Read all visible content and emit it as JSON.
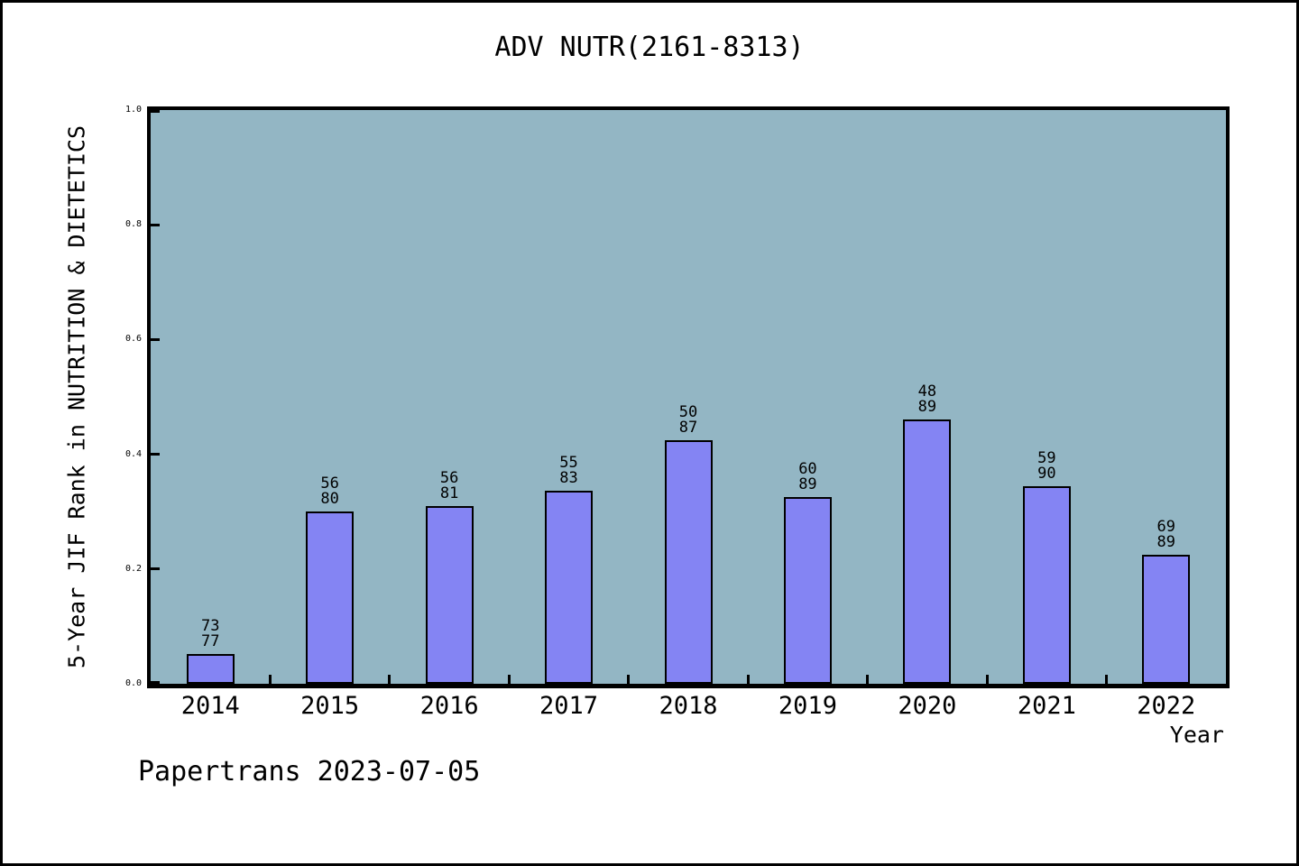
{
  "chart_data": {
    "type": "bar",
    "title": "ADV NUTR(2161-8313)",
    "xlabel": "Year",
    "ylabel": "5-Year JIF Rank in NUTRITION & DIETETICS",
    "footer": "Papertrans 2023-07-05",
    "categories": [
      "2014",
      "2015",
      "2016",
      "2017",
      "2018",
      "2019",
      "2020",
      "2021",
      "2022"
    ],
    "ranks": [
      73,
      56,
      56,
      55,
      50,
      60,
      48,
      59,
      69
    ],
    "totals": [
      77,
      80,
      81,
      83,
      87,
      89,
      89,
      90,
      89
    ],
    "values": [
      0.052,
      0.3,
      0.309,
      0.337,
      0.425,
      0.326,
      0.461,
      0.344,
      0.225
    ],
    "bar_labels": [
      [
        "73",
        "77"
      ],
      [
        "56",
        "80"
      ],
      [
        "56",
        "81"
      ],
      [
        "55",
        "83"
      ],
      [
        "50",
        "87"
      ],
      [
        "60",
        "89"
      ],
      [
        "48",
        "89"
      ],
      [
        "59",
        "90"
      ],
      [
        "69",
        "89"
      ]
    ],
    "ylim": [
      0,
      1
    ],
    "yticks": [
      0.0,
      0.2,
      0.4,
      0.6,
      0.8,
      1.0
    ],
    "ytick_labels": [
      "0.0",
      "0.2",
      "0.4",
      "0.6",
      "0.8",
      "1.0"
    ],
    "grid": false,
    "legend": "none",
    "colors": {
      "bar_fill": "#8484f3",
      "bar_border": "#000000",
      "plot_background": "#93b6c4",
      "frame": "#000000",
      "text": "#000000",
      "page_background": "#ffffff"
    }
  }
}
